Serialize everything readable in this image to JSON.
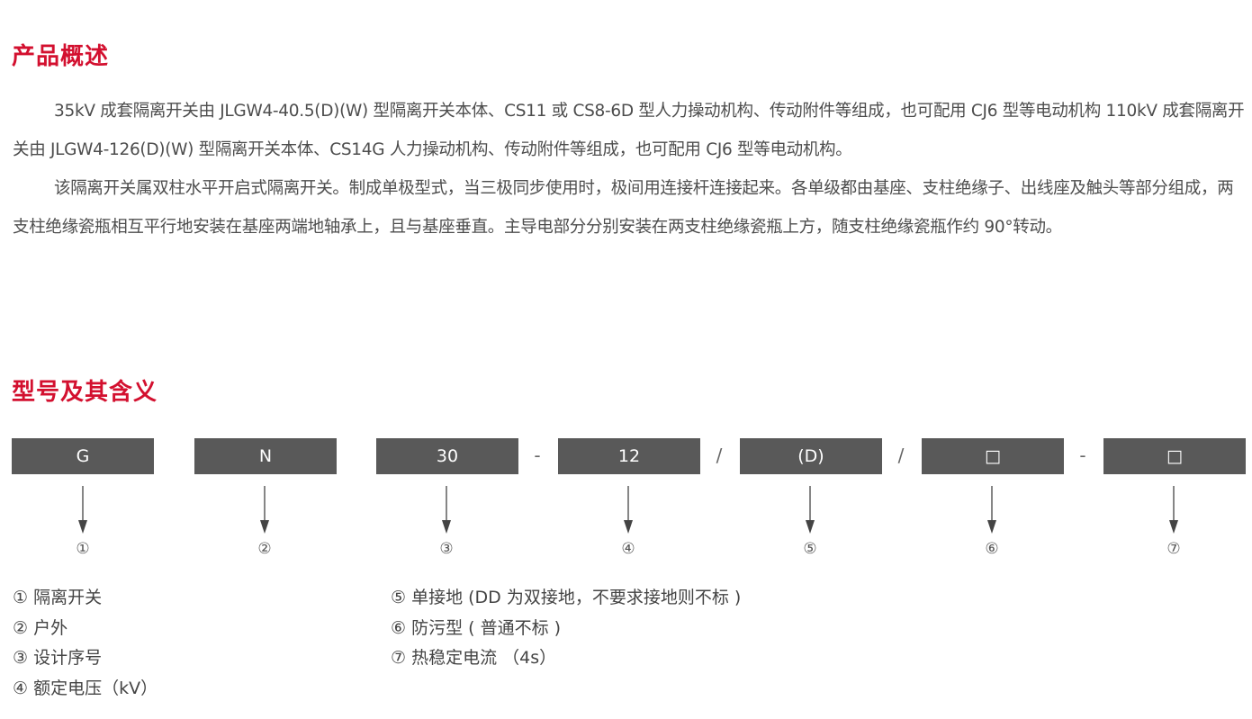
{
  "overview": {
    "title": "产品概述",
    "paragraphs": [
      "35kV 成套隔离开关由 JLGW4-40.5(D)(W) 型隔离开关本体、CS11 或 CS8-6D 型人力操动机构、传动附件等组成，也可配用 CJ6 型等电动机构 110kV 成套隔离开关由 JLGW4-126(D)(W) 型隔离开关本体、CS14G 人力操动机构、传动附件等组成，也可配用 CJ6 型等电动机构。",
      "该隔离开关属双柱水平开启式隔离开关。制成单极型式，当三极同步使用时，极间用连接杆连接起来。各单级都由基座、支柱绝缘子、出线座及触头等部分组成，两支柱绝缘瓷瓶相互平行地安装在基座两端地轴承上，且与基座垂直。主导电部分分别安装在两支柱绝缘瓷瓶上方，随支柱绝缘瓷瓶作约 90°转动。"
    ]
  },
  "model": {
    "title": "型号及其含义",
    "boxes": [
      "G",
      "N",
      "30",
      "12",
      "(D)",
      "□",
      "□"
    ],
    "separators": [
      "-",
      "/",
      "/",
      "-"
    ],
    "numbers": [
      "①",
      "②",
      "③",
      "④",
      "⑤",
      "⑥",
      "⑦"
    ],
    "legend_left": [
      "① 隔离开关",
      "② 户外",
      "③ 设计序号",
      "④ 额定电压（kV）"
    ],
    "legend_right": [
      "⑤ 单接地 (DD 为双接地，不要求接地则不标 )",
      "⑥ 防污型 ( 普通不标 )",
      "⑦ 热稳定电流 （4s）"
    ]
  },
  "colors": {
    "accent": "#d3102f",
    "box": "#595959"
  }
}
